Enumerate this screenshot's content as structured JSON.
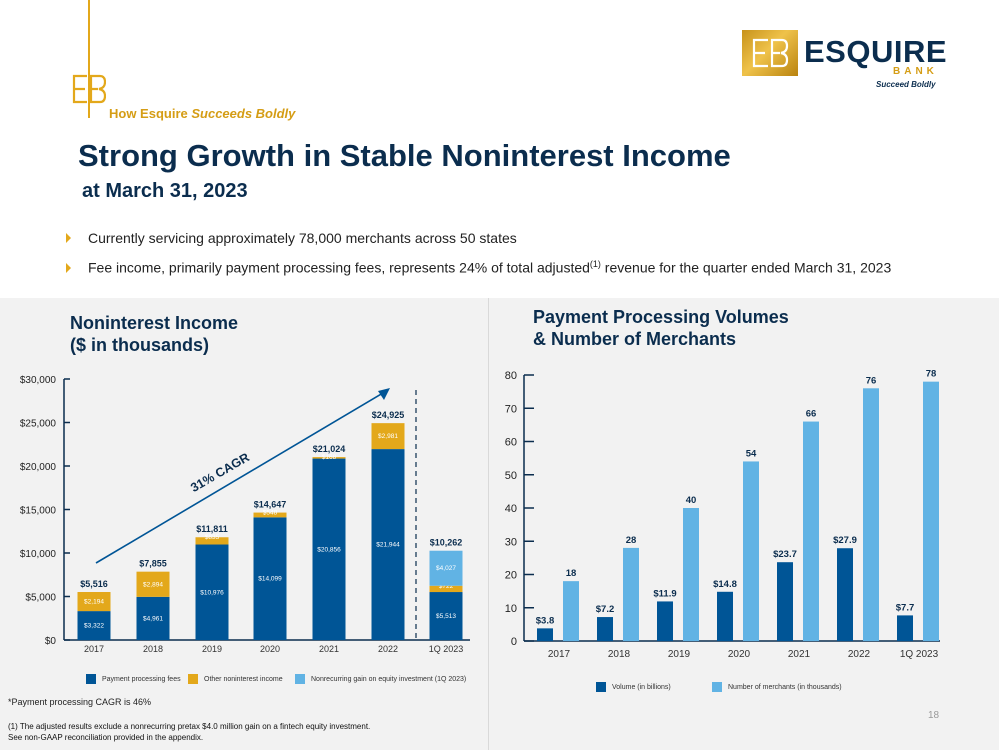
{
  "brand": {
    "eyebrow_prefix": "How Esquire ",
    "eyebrow_emph": "Succeeds Boldly",
    "logo_word": "ESQUIRE",
    "logo_bank": "BANK",
    "logo_tagline": "Succeed Boldly",
    "gold": "#e3a81b",
    "navy": "#0b2d4e"
  },
  "header": {
    "title": "Strong Growth in Stable Noninterest Income",
    "subtitle": "at March 31, 2023"
  },
  "bullets": {
    "b1": "Currently servicing approximately 78,000 merchants across 50 states",
    "b2_pre": "Fee income, primarily payment processing fees, represents 24% of total adjusted",
    "b2_sup": "(1)",
    "b2_post": " revenue for the quarter ended March 31, 2023"
  },
  "footer": {
    "note": "*Payment processing CAGR is 46%",
    "footnote_1": "(1) The adjusted results exclude a nonrecurring pretax $4.0 million gain on a fintech equity investment.",
    "footnote_2": "See non-GAAP reconciliation provided in the appendix.",
    "page": "18"
  },
  "chart_data": [
    {
      "type": "bar",
      "stacked": true,
      "title_line1": "Noninterest Income",
      "title_line2": "($ in thousands)",
      "categories": [
        "2017",
        "2018",
        "2019",
        "2020",
        "2021",
        "2022",
        "1Q 2023"
      ],
      "ylim": [
        0,
        30000
      ],
      "yticks": [
        "$0",
        "$5,000",
        "$10,000",
        "$15,000",
        "$20,000",
        "$25,000",
        "$30,000"
      ],
      "series": [
        {
          "name": "Payment processing fees",
          "color": "#005596",
          "values": [
            3322,
            4961,
            10976,
            14099,
            20856,
            21944,
            5513
          ],
          "labels": [
            "$3,322",
            "$4,961",
            "$10,976",
            "$14,099",
            "$20,856",
            "$21,944",
            "$5,513"
          ]
        },
        {
          "name": "Other noninterest income",
          "color": "#e3a81b",
          "values": [
            2194,
            2894,
            835,
            548,
            168,
            2981,
            722
          ],
          "labels": [
            "$2,194",
            "$2,894",
            "$835",
            "$548",
            "$168",
            "$2,981",
            "$722"
          ]
        },
        {
          "name": "Nonrecurring gain on equity investment (1Q 2023)",
          "color": "#61b3e4",
          "values": [
            0,
            0,
            0,
            0,
            0,
            0,
            4027
          ],
          "labels": [
            "",
            "",
            "",
            "",
            "",
            "",
            "$4,027"
          ]
        }
      ],
      "totals": [
        "$5,516",
        "$7,855",
        "$11,811",
        "$14,647",
        "$21,024",
        "$24,925",
        "$10,262"
      ],
      "annotation": "31% CAGR"
    },
    {
      "type": "bar",
      "title_line1": "Payment Processing Volumes",
      "title_line2": "& Number of Merchants",
      "categories": [
        "2017",
        "2018",
        "2019",
        "2020",
        "2021",
        "2022",
        "1Q 2023"
      ],
      "ylim": [
        0,
        80
      ],
      "yticks": [
        "0",
        "10",
        "20",
        "30",
        "40",
        "50",
        "60",
        "70",
        "80"
      ],
      "series": [
        {
          "name": "Volume (in billions)",
          "color": "#005596",
          "values": [
            3.8,
            7.2,
            11.9,
            14.8,
            23.7,
            27.9,
            7.7
          ],
          "labels": [
            "$3.8",
            "$7.2",
            "$11.9",
            "$14.8",
            "$23.7",
            "$27.9",
            "$7.7"
          ]
        },
        {
          "name": "Number of merchants (in thousands)",
          "color": "#61b3e4",
          "values": [
            18,
            28,
            40,
            54,
            66,
            76,
            78
          ],
          "labels": [
            "18",
            "28",
            "40",
            "54",
            "66",
            "76",
            "78"
          ]
        }
      ]
    }
  ]
}
